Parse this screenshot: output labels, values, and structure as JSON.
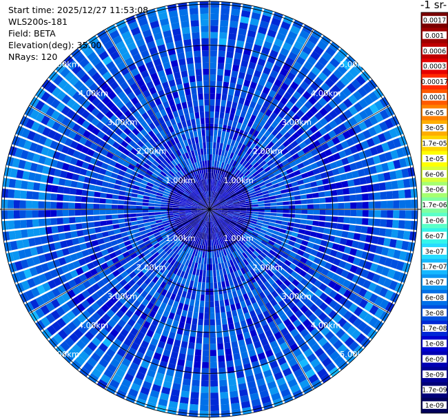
{
  "header": {
    "start_time": "Start time: 2025/12/27 11:53:08",
    "instrument": "WLS200s-181",
    "field": "Field: BETA",
    "elevation": "Elevation(deg): 35.00",
    "nrays": "NRays: 120"
  },
  "colorbar": {
    "title": "-1 sr-",
    "labels": [
      "0.0017",
      "0.001",
      "0.0006",
      "0.0003",
      "0.00017",
      "0.0001",
      "6e-05",
      "3e-05",
      "1.7e-05",
      "1e-05",
      "6e-06",
      "3e-06",
      "1.7e-06",
      "1e-06",
      "6e-07",
      "3e-07",
      "1.7e-07",
      "1e-07",
      "6e-08",
      "3e-08",
      "1.7e-08",
      "1e-08",
      "6e-09",
      "3e-09",
      "1.7e-09",
      "1e-09"
    ],
    "colors": [
      "#7a0000",
      "#9e0000",
      "#c00000",
      "#e60000",
      "#ff2a00",
      "#ff5a00",
      "#ff8200",
      "#ffae00",
      "#ffd500",
      "#ffff00",
      "#d8ff3a",
      "#a6ff70",
      "#7fffa0",
      "#5cffc8",
      "#33f5ea",
      "#26dcff",
      "#14b8ff",
      "#0a96f2",
      "#0070e8",
      "#0050e0",
      "#0028d6",
      "#0000d0",
      "#0000b4",
      "#000096",
      "#000078",
      "#00005a"
    ]
  },
  "chart_data": {
    "type": "heatmap",
    "projection": "polar PPI",
    "nrays": 120,
    "elevation_deg": 35.0,
    "field": "BETA",
    "range_rings_km": [
      "1.00km",
      "2.00km",
      "3.00km",
      "4.00km",
      "5.00km"
    ],
    "value_scale": "log",
    "colorbar_range": [
      1e-09,
      0.0017
    ],
    "dominant_range": [
      1e-09,
      1e-07
    ],
    "typical_value": 3e-08
  }
}
